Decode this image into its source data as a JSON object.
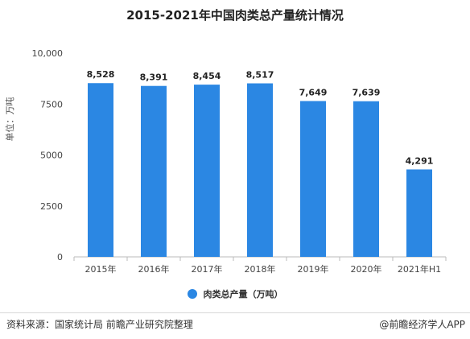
{
  "chart_data": {
    "type": "bar",
    "title": "2015-2021年中国肉类总产量统计情况",
    "ylabel": "单位：万吨",
    "categories": [
      "2015年",
      "2016年",
      "2017年",
      "2018年",
      "2019年",
      "2020年",
      "2021年H1"
    ],
    "series": [
      {
        "name": "肉类总产量（万吨）",
        "values": [
          8528,
          8391,
          8454,
          8517,
          7649,
          7639,
          4291
        ],
        "labels": [
          "8,528",
          "8,391",
          "8,454",
          "8,517",
          "7,649",
          "7,639",
          "4,291"
        ]
      }
    ],
    "ylim": [
      0,
      10000
    ],
    "yticks": [
      0,
      2500,
      5000,
      7500,
      10000
    ],
    "ytick_labels": [
      "0",
      "2500",
      "5000",
      "7500",
      "10,000"
    ],
    "color": "#2b87e3",
    "grid": false,
    "legend_position": "bottom"
  },
  "footer": {
    "source": "资料来源：国家统计局 前瞻产业研究院整理",
    "credit": "@前瞻经济学人APP"
  }
}
